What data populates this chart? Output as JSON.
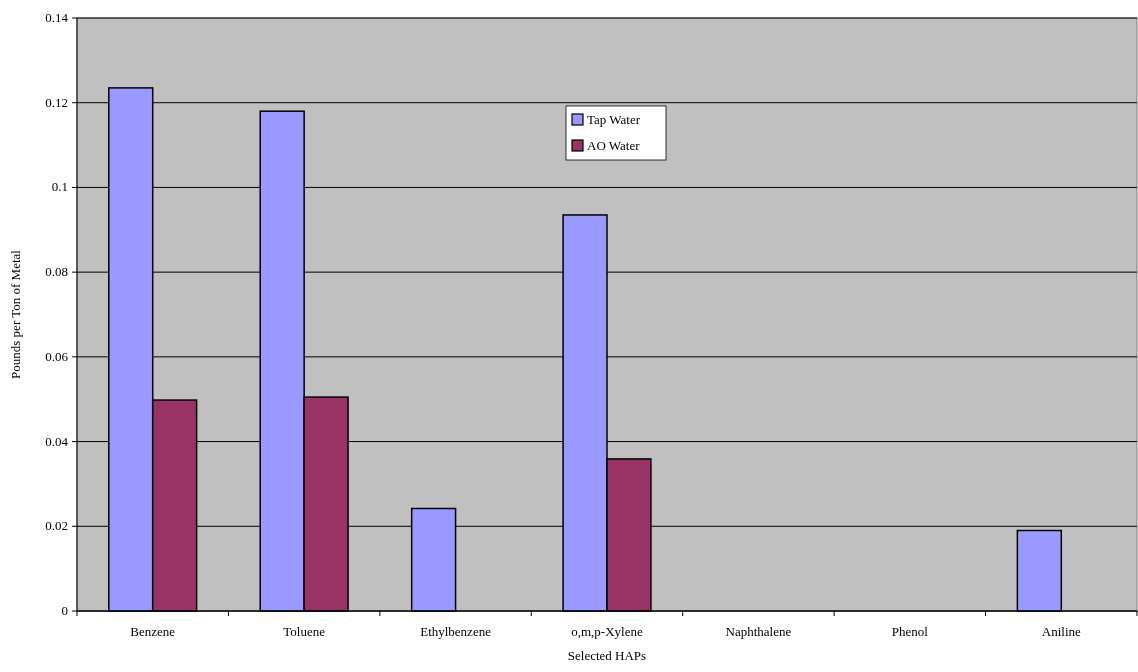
{
  "chart_data": {
    "type": "bar",
    "xlabel": "Selected HAPs",
    "ylabel": "Pounds per Ton of Metal",
    "categories": [
      "Benzene",
      "Toluene",
      "Ethylbenzene",
      "o,m,p-Xylene",
      "Naphthalene",
      "Phenol",
      "Aniline"
    ],
    "series": [
      {
        "name": "Tap Water",
        "color": "#9999ff",
        "values": [
          0.1235,
          0.118,
          0.0242,
          0.0935,
          null,
          null,
          0.019
        ]
      },
      {
        "name": "AO Water",
        "color": "#993366",
        "values": [
          0.0498,
          0.0505,
          null,
          0.0359,
          null,
          null,
          null
        ]
      }
    ],
    "ylim": [
      0,
      0.14
    ],
    "yticks": [
      0,
      0.02,
      0.04,
      0.06,
      {
        "value": 0.08,
        "label": "0.08"
      },
      {
        "value": 0.1,
        "label": "0.1"
      },
      0.12,
      0.14
    ],
    "grid": "y",
    "legend": "top"
  }
}
